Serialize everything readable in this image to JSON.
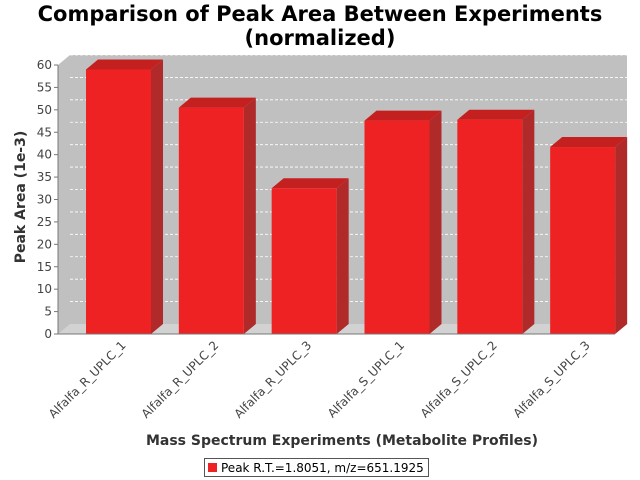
{
  "chart_data": {
    "type": "bar",
    "title": "Comparison of Peak Area Between Experiments (normalized)",
    "title_lines": [
      "Comparison of Peak Area Between Experiments",
      "(normalized)"
    ],
    "xlabel": "Mass Spectrum Experiments (Metabolite Profiles)",
    "ylabel": "Peak Area (1e-3)",
    "categories": [
      "Alfalfa_R_UPLC_1",
      "Alfalfa_R_UPLC_2",
      "Alfalfa_R_UPLC_3",
      "Alfalfa_S_UPLC_1",
      "Alfalfa_S_UPLC_2",
      "Alfalfa_S_UPLC_3"
    ],
    "series": [
      {
        "name": "Peak R.T.=1.8051, m/z=651.1925",
        "values": [
          59,
          50.5,
          32.5,
          47.6,
          47.8,
          41.7
        ],
        "color": "#ee2222"
      }
    ],
    "ylim": [
      0,
      60
    ],
    "yticks": [
      0,
      5,
      10,
      15,
      20,
      25,
      30,
      35,
      40,
      45,
      50,
      55,
      60
    ],
    "grid": true,
    "style": "3d",
    "legend_position": "bottom"
  }
}
